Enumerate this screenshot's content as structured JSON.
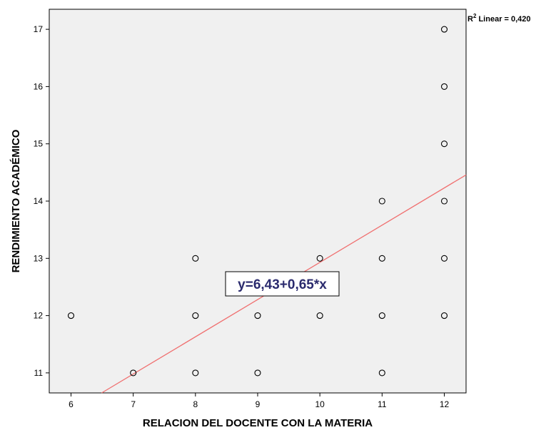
{
  "chart_data": {
    "type": "scatter",
    "xlabel": "RELACION DEL DOCENTE CON LA MATERIA",
    "ylabel": "RENDIMIENTO ACADÉMICO",
    "xlim": [
      5.65,
      12.35
    ],
    "ylim": [
      10.65,
      17.35
    ],
    "x_ticks": [
      6,
      7,
      8,
      9,
      10,
      11,
      12
    ],
    "y_ticks": [
      11,
      12,
      13,
      14,
      15,
      16,
      17
    ],
    "x_tick_labels": [
      "6",
      "7",
      "8",
      "9",
      "10",
      "11",
      "12"
    ],
    "y_tick_labels": [
      "11",
      "12",
      "13",
      "14",
      "15",
      "16",
      "17"
    ],
    "grid": false,
    "background": "#f0f0f0",
    "series": [
      {
        "marker": "open-circle",
        "color": "#000000",
        "points": [
          {
            "x": 6,
            "y": 12
          },
          {
            "x": 7,
            "y": 11
          },
          {
            "x": 8,
            "y": 11
          },
          {
            "x": 8,
            "y": 12
          },
          {
            "x": 8,
            "y": 13
          },
          {
            "x": 9,
            "y": 11
          },
          {
            "x": 9,
            "y": 12
          },
          {
            "x": 10,
            "y": 12
          },
          {
            "x": 10,
            "y": 13
          },
          {
            "x": 11,
            "y": 11
          },
          {
            "x": 11,
            "y": 12
          },
          {
            "x": 11,
            "y": 13
          },
          {
            "x": 11,
            "y": 14
          },
          {
            "x": 12,
            "y": 12
          },
          {
            "x": 12,
            "y": 13
          },
          {
            "x": 12,
            "y": 14
          },
          {
            "x": 12,
            "y": 15
          },
          {
            "x": 12,
            "y": 16
          },
          {
            "x": 12,
            "y": 17
          }
        ]
      }
    ],
    "fit_line": {
      "intercept": 6.43,
      "slope": 0.65,
      "color": "#f07070",
      "equation_label": "y=6,43+0,65*x",
      "r2_label": "R",
      "r2_superscript": "2",
      "r2_suffix": " Linear = 0,420"
    }
  }
}
